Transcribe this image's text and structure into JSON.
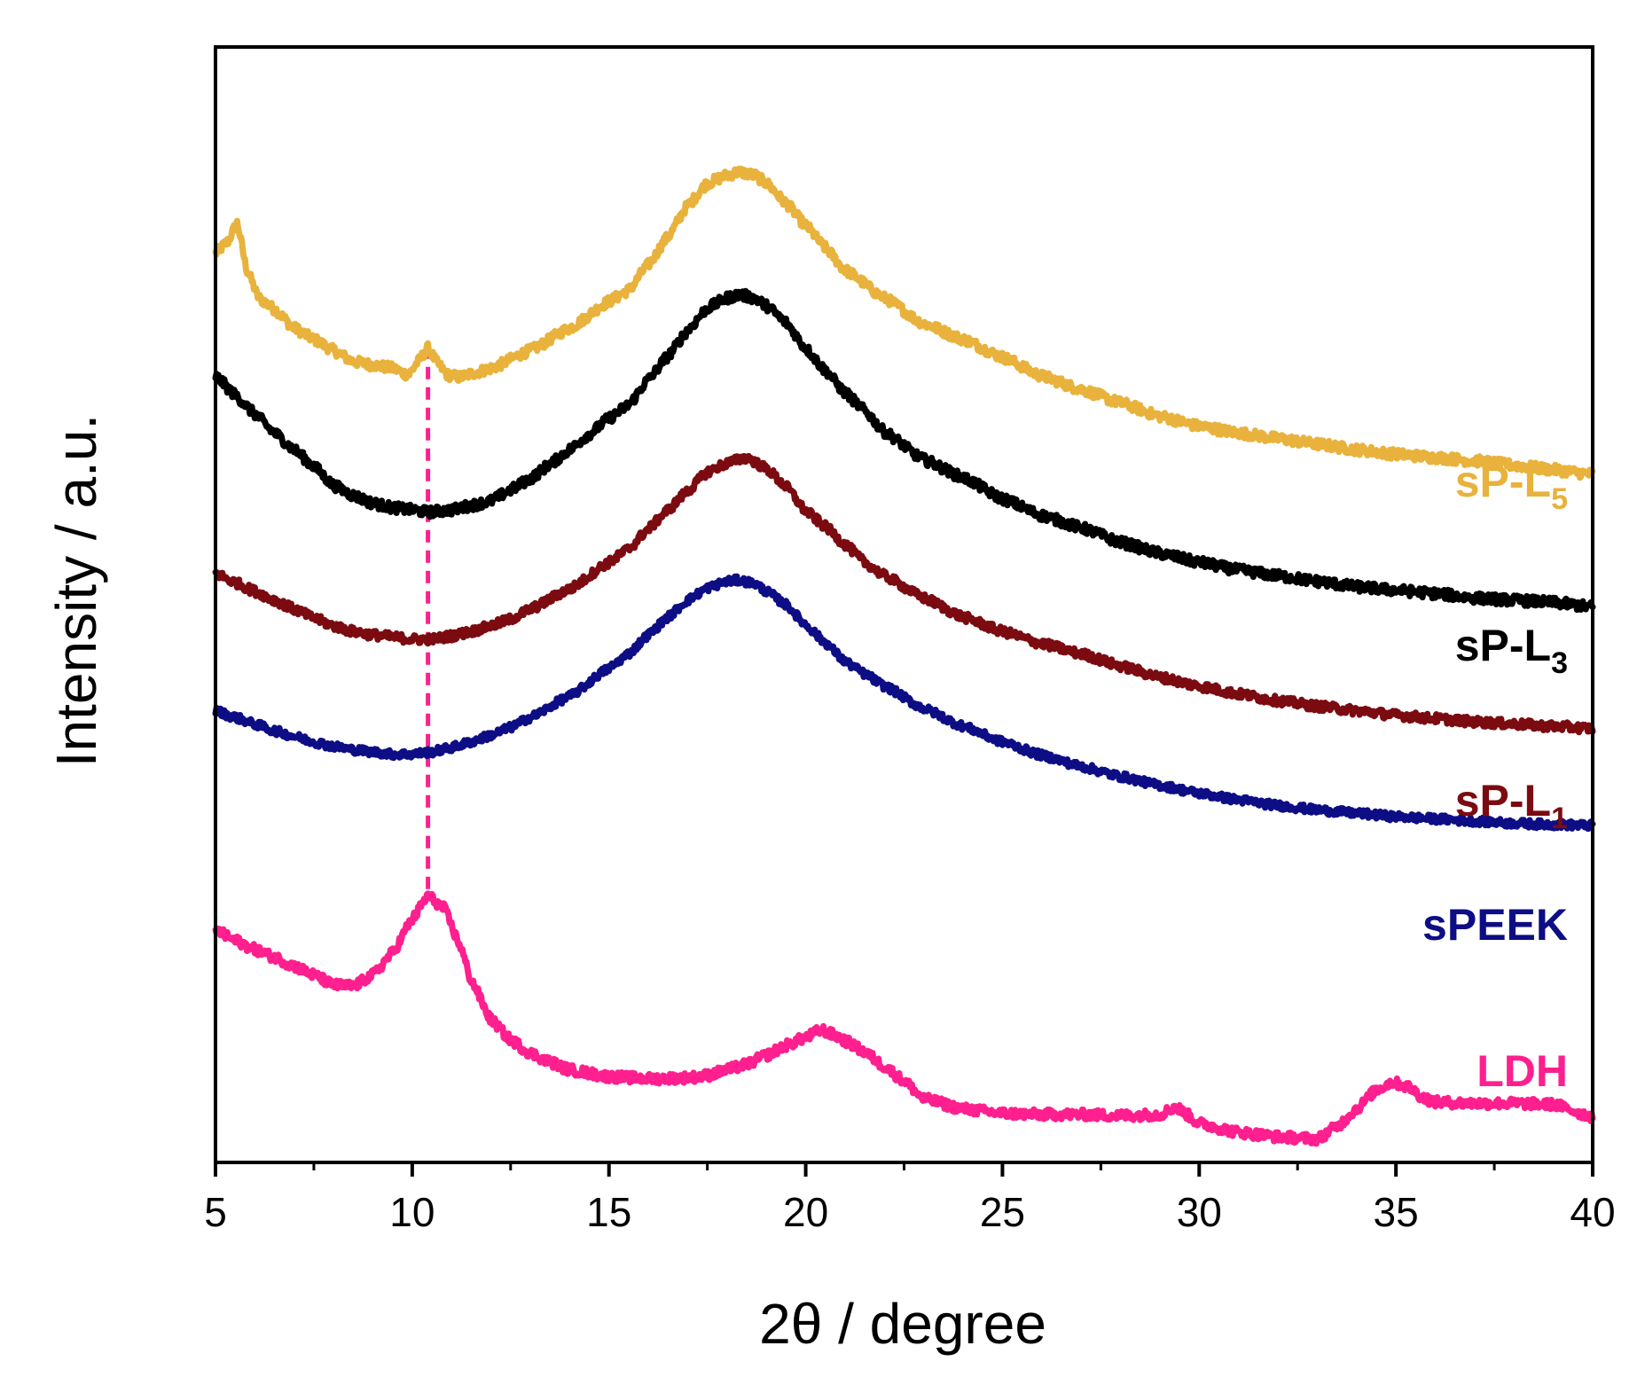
{
  "chart_data": {
    "type": "line",
    "title": "",
    "xlabel": "2θ / degree",
    "ylabel": "Intensity / a.u.",
    "xlim": [
      5,
      40
    ],
    "ylim": [
      0,
      100
    ],
    "x_major_ticks": [
      5,
      10,
      15,
      20,
      25,
      30,
      35,
      40
    ],
    "x_tick_labels": [
      "5",
      "10",
      "15",
      "20",
      "25",
      "30",
      "35",
      "40"
    ],
    "x_minor_ticks": [
      7.5,
      12.5,
      17.5,
      22.5,
      27.5,
      32.5,
      37.5
    ],
    "y_ticks_shown": false,
    "grid": false,
    "legend": "labels at right end of each curve",
    "reference_line": {
      "x": 10.4,
      "y_from": 24.5,
      "y_to": 72.5,
      "style": "dashed",
      "color": "#ff1f8e"
    },
    "series": [
      {
        "name": "sP-L5",
        "label_main": "sP-L",
        "label_sub": "5",
        "color": "#e8b23c",
        "noise": 0.45,
        "points": [
          [
            5,
            81.5
          ],
          [
            5.3,
            82.5
          ],
          [
            5.55,
            84.2
          ],
          [
            5.8,
            80
          ],
          [
            6.1,
            77.5
          ],
          [
            6.5,
            76.5
          ],
          [
            7,
            74.8
          ],
          [
            7.5,
            73.8
          ],
          [
            8,
            72.8
          ],
          [
            8.5,
            71.8
          ],
          [
            9,
            71.5
          ],
          [
            9.5,
            71.2
          ],
          [
            9.9,
            70.6
          ],
          [
            10.15,
            71.8
          ],
          [
            10.4,
            73
          ],
          [
            10.65,
            71.6
          ],
          [
            10.9,
            70.6
          ],
          [
            11.2,
            70.4
          ],
          [
            11.6,
            70.8
          ],
          [
            12,
            71.2
          ],
          [
            13,
            72.8
          ],
          [
            14,
            74.8
          ],
          [
            15,
            77.2
          ],
          [
            15.5,
            78.2
          ],
          [
            16,
            80.5
          ],
          [
            16.5,
            83
          ],
          [
            17,
            85.8
          ],
          [
            17.5,
            87.8
          ],
          [
            18,
            88.5
          ],
          [
            18.3,
            88.8
          ],
          [
            18.7,
            88.5
          ],
          [
            19,
            87.8
          ],
          [
            19.5,
            86
          ],
          [
            20,
            84
          ],
          [
            20.5,
            82
          ],
          [
            21,
            80
          ],
          [
            22,
            77.5
          ],
          [
            23,
            75.2
          ],
          [
            24,
            73.8
          ],
          [
            25,
            72.2
          ],
          [
            26,
            70.5
          ],
          [
            27,
            69.3
          ],
          [
            28,
            68.1
          ],
          [
            29,
            66.9
          ],
          [
            30,
            66
          ],
          [
            31,
            65.4
          ],
          [
            32,
            64.9
          ],
          [
            33,
            64.4
          ],
          [
            34,
            63.9
          ],
          [
            35,
            63.5
          ],
          [
            36,
            63.2
          ],
          [
            37,
            62.9
          ],
          [
            38,
            62.5
          ],
          [
            39,
            62.1
          ],
          [
            40,
            61.7
          ]
        ]
      },
      {
        "name": "sP-L3",
        "label_main": "sP-L",
        "label_sub": "3",
        "color": "#000000",
        "noise": 0.45,
        "points": [
          [
            5,
            70.5
          ],
          [
            5.5,
            68.8
          ],
          [
            6,
            67.1
          ],
          [
            6.5,
            65.4
          ],
          [
            7,
            63.9
          ],
          [
            7.5,
            62.4
          ],
          [
            8,
            60.7
          ],
          [
            8.5,
            59.8
          ],
          [
            9,
            59.1
          ],
          [
            9.5,
            58.7
          ],
          [
            10,
            58.5
          ],
          [
            10.4,
            58.3
          ],
          [
            11,
            58.5
          ],
          [
            11.5,
            58.9
          ],
          [
            12,
            59.3
          ],
          [
            12.5,
            60.3
          ],
          [
            13,
            61.3
          ],
          [
            13.5,
            62.6
          ],
          [
            14,
            63.9
          ],
          [
            14.5,
            65.3
          ],
          [
            15,
            66.7
          ],
          [
            15.5,
            67.9
          ],
          [
            16,
            70.2
          ],
          [
            16.5,
            72.3
          ],
          [
            17,
            74.6
          ],
          [
            17.5,
            76.6
          ],
          [
            18,
            77.5
          ],
          [
            18.3,
            77.8
          ],
          [
            18.7,
            77.5
          ],
          [
            19,
            76.8
          ],
          [
            19.5,
            75.3
          ],
          [
            20,
            73
          ],
          [
            20.5,
            71
          ],
          [
            21,
            69
          ],
          [
            21.5,
            67.4
          ],
          [
            22,
            65.5
          ],
          [
            23,
            63
          ],
          [
            24,
            61.4
          ],
          [
            25,
            59.5
          ],
          [
            26,
            58
          ],
          [
            27,
            56.9
          ],
          [
            28,
            55.6
          ],
          [
            29,
            54.6
          ],
          [
            30,
            53.8
          ],
          [
            31,
            53.1
          ],
          [
            32,
            52.6
          ],
          [
            33,
            52.1
          ],
          [
            34,
            51.6
          ],
          [
            35,
            51.3
          ],
          [
            36,
            51
          ],
          [
            37,
            50.6
          ],
          [
            38,
            50.4
          ],
          [
            39,
            50.2
          ],
          [
            40,
            49.8
          ]
        ]
      },
      {
        "name": "sP-L1",
        "label_main": "sP-L",
        "label_sub": "1",
        "color": "#7b0b10",
        "noise": 0.4,
        "points": [
          [
            5,
            52.8
          ],
          [
            5.5,
            52
          ],
          [
            6,
            51.2
          ],
          [
            6.5,
            50.4
          ],
          [
            7,
            49.6
          ],
          [
            7.5,
            48.8
          ],
          [
            8,
            48.1
          ],
          [
            8.5,
            47.6
          ],
          [
            9,
            47.3
          ],
          [
            9.5,
            47.1
          ],
          [
            10,
            46.9
          ],
          [
            10.5,
            46.9
          ],
          [
            11,
            47.2
          ],
          [
            11.5,
            47.6
          ],
          [
            12,
            48.1
          ],
          [
            12.5,
            48.7
          ],
          [
            13,
            49.6
          ],
          [
            14,
            51.4
          ],
          [
            15,
            53.8
          ],
          [
            15.5,
            55
          ],
          [
            16,
            56.8
          ],
          [
            16.5,
            58.5
          ],
          [
            17,
            60.2
          ],
          [
            17.5,
            61.9
          ],
          [
            18,
            62.7
          ],
          [
            18.5,
            63.2
          ],
          [
            19,
            62.2
          ],
          [
            19.5,
            60.6
          ],
          [
            20,
            58.4
          ],
          [
            20.5,
            57
          ],
          [
            21,
            55.4
          ],
          [
            21.5,
            53.8
          ],
          [
            22,
            52.6
          ],
          [
            23,
            50.6
          ],
          [
            24,
            48.9
          ],
          [
            25,
            47.6
          ],
          [
            26,
            46.5
          ],
          [
            27,
            45.6
          ],
          [
            28,
            44.5
          ],
          [
            29,
            43.5
          ],
          [
            30,
            42.7
          ],
          [
            31,
            42
          ],
          [
            32,
            41.4
          ],
          [
            33,
            40.9
          ],
          [
            34,
            40.5
          ],
          [
            35,
            40.1
          ],
          [
            36,
            39.8
          ],
          [
            37,
            39.5
          ],
          [
            38,
            39.3
          ],
          [
            39,
            39.1
          ],
          [
            40,
            38.9
          ]
        ]
      },
      {
        "name": "sPEEK",
        "label_main": "sPEEK",
        "label_sub": "",
        "color": "#0d0d85",
        "noise": 0.35,
        "points": [
          [
            5,
            40.5
          ],
          [
            5.5,
            39.9
          ],
          [
            6,
            39.3
          ],
          [
            6.5,
            38.7
          ],
          [
            7,
            38.2
          ],
          [
            7.5,
            37.7
          ],
          [
            8,
            37.3
          ],
          [
            8.5,
            37
          ],
          [
            9,
            36.8
          ],
          [
            9.5,
            36.6
          ],
          [
            10,
            36.6
          ],
          [
            10.5,
            36.8
          ],
          [
            11,
            37.2
          ],
          [
            11.5,
            37.7
          ],
          [
            12,
            38.3
          ],
          [
            12.5,
            39
          ],
          [
            13,
            39.9
          ],
          [
            14,
            41.8
          ],
          [
            15,
            44.3
          ],
          [
            15.5,
            45.6
          ],
          [
            16,
            47.3
          ],
          [
            16.5,
            48.9
          ],
          [
            17,
            50.4
          ],
          [
            17.5,
            51.5
          ],
          [
            18,
            52.1
          ],
          [
            18.3,
            52.2
          ],
          [
            18.7,
            51.9
          ],
          [
            19,
            51.2
          ],
          [
            19.5,
            50
          ],
          [
            20,
            48.2
          ],
          [
            20.5,
            46.6
          ],
          [
            21,
            44.9
          ],
          [
            21.5,
            43.8
          ],
          [
            22,
            42.7
          ],
          [
            23,
            40.7
          ],
          [
            24,
            39.1
          ],
          [
            25,
            37.7
          ],
          [
            26,
            36.5
          ],
          [
            27,
            35.5
          ],
          [
            28,
            34.6
          ],
          [
            29,
            33.8
          ],
          [
            30,
            33.1
          ],
          [
            31,
            32.5
          ],
          [
            32,
            32
          ],
          [
            33,
            31.6
          ],
          [
            34,
            31.3
          ],
          [
            35,
            31
          ],
          [
            36,
            30.8
          ],
          [
            37,
            30.6
          ],
          [
            38,
            30.4
          ],
          [
            39,
            30.3
          ],
          [
            40,
            30.2
          ]
        ]
      },
      {
        "name": "LDH",
        "label_main": "LDH",
        "label_sub": "",
        "color": "#ff1f8e",
        "noise": 0.45,
        "points": [
          [
            5,
            20.8
          ],
          [
            5.5,
            19.9
          ],
          [
            6,
            19.1
          ],
          [
            6.5,
            18.4
          ],
          [
            7,
            17.6
          ],
          [
            7.5,
            16.8
          ],
          [
            8,
            15.9
          ],
          [
            8.5,
            15.8
          ],
          [
            9,
            16.8
          ],
          [
            9.5,
            18.8
          ],
          [
            10,
            21.8
          ],
          [
            10.4,
            23.9
          ],
          [
            10.8,
            22.8
          ],
          [
            11.2,
            19.6
          ],
          [
            11.5,
            16.3
          ],
          [
            12,
            12.8
          ],
          [
            12.5,
            11
          ],
          [
            13,
            9.8
          ],
          [
            13.5,
            9
          ],
          [
            14,
            8.3
          ],
          [
            15,
            7.7
          ],
          [
            16,
            7.5
          ],
          [
            17,
            7.6
          ],
          [
            17.5,
            7.8
          ],
          [
            18,
            8.3
          ],
          [
            18.5,
            8.8
          ],
          [
            19,
            9.6
          ],
          [
            19.5,
            10.5
          ],
          [
            20,
            11.2
          ],
          [
            20.4,
            11.9
          ],
          [
            20.8,
            11.3
          ],
          [
            21,
            10.9
          ],
          [
            21.5,
            9.9
          ],
          [
            22,
            8.6
          ],
          [
            22.5,
            7.3
          ],
          [
            23,
            5.7
          ],
          [
            24,
            4.8
          ],
          [
            25,
            4.4
          ],
          [
            26,
            4.3
          ],
          [
            27,
            4.3
          ],
          [
            28,
            4.2
          ],
          [
            29,
            4.3
          ],
          [
            29.4,
            5
          ],
          [
            29.6,
            4.5
          ],
          [
            30,
            3.5
          ],
          [
            31,
            2.7
          ],
          [
            32,
            2.3
          ],
          [
            33,
            2.1
          ],
          [
            33.5,
            3.2
          ],
          [
            34,
            4.8
          ],
          [
            34.5,
            6.5
          ],
          [
            34.9,
            7.2
          ],
          [
            35.3,
            6.8
          ],
          [
            35.7,
            5.8
          ],
          [
            36,
            5.4
          ],
          [
            37,
            5.3
          ],
          [
            38,
            5.3
          ],
          [
            39,
            5.2
          ],
          [
            40,
            4.1
          ]
        ]
      }
    ]
  }
}
